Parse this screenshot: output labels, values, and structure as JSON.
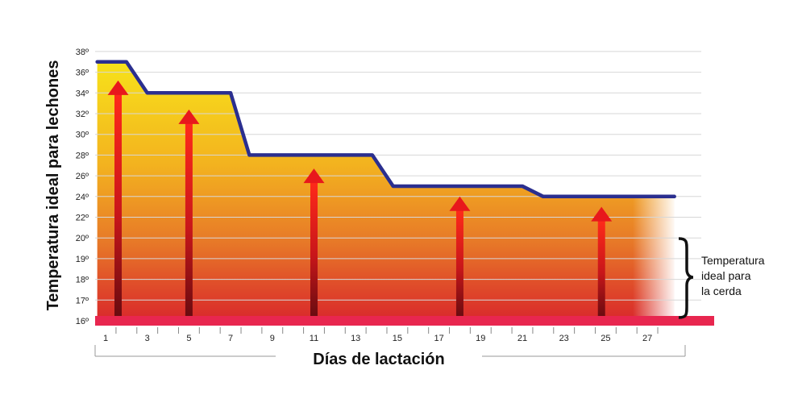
{
  "chart_data": {
    "type": "area",
    "ylabel": "Temperatura ideal para lechones",
    "xlabel": "Días de lactación",
    "yticks": [
      "16º",
      "17º",
      "18º",
      "19º",
      "20º",
      "22º",
      "24º",
      "26º",
      "28º",
      "30º",
      "32º",
      "34º",
      "36º",
      "38º"
    ],
    "xticks": [
      "1",
      "3",
      "5",
      "7",
      "9",
      "11",
      "13",
      "15",
      "17",
      "19",
      "21",
      "23",
      "25",
      "27"
    ],
    "x_range": [
      0.6,
      28.6
    ],
    "series": [
      {
        "x": [
          0.6,
          2.0,
          3.0,
          7.0,
          7.9,
          13.8,
          14.8,
          21.0,
          22.0,
          28.3
        ],
        "y": [
          37,
          37,
          34,
          34,
          28,
          28,
          25,
          25,
          24,
          24
        ]
      }
    ],
    "arrows": [
      {
        "x": 1.6,
        "y": 35.2
      },
      {
        "x": 5.0,
        "y": 32.4
      },
      {
        "x": 11.0,
        "y": 26.7
      },
      {
        "x": 18.0,
        "y": 24.0
      },
      {
        "x": 24.8,
        "y": 23.0
      }
    ],
    "sow_band_y": 16,
    "annotation": {
      "lines": [
        "Temperatura",
        "ideal para",
        "la cerda"
      ]
    },
    "colors": {
      "line": "#2b2f8f",
      "baseline": "#e8264f",
      "grid": "#d7d7d7",
      "arrow": "#e8181c",
      "fill_top": "#f7e21a",
      "fill_bottom": "#d9282b"
    }
  }
}
